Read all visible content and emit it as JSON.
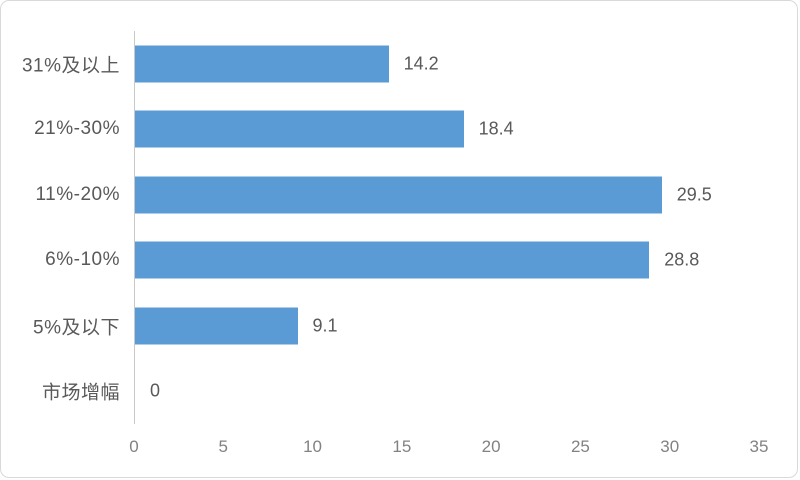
{
  "chart_data": {
    "type": "bar",
    "orientation": "horizontal",
    "title": "",
    "xlabel": "",
    "ylabel": "",
    "categories_top_to_bottom": [
      "31%及以上",
      "21%-30%",
      "11%-20%",
      "6%-10%",
      "5%及以下",
      "市场增幅"
    ],
    "values": [
      14.2,
      18.4,
      29.5,
      28.8,
      9.1,
      0
    ],
    "value_labels": [
      "14.2",
      "18.4",
      "29.5",
      "28.8",
      "9.1",
      "0"
    ],
    "xlim": [
      0,
      35
    ],
    "x_ticks": [
      "0",
      "5",
      "10",
      "15",
      "20",
      "25",
      "30",
      "35"
    ],
    "grid": false,
    "legend": "none",
    "colors": {
      "bar": "#5b9bd5",
      "category_label": "#595959",
      "value_label": "#595959",
      "tick_label": "#828282",
      "axis_line": "#c9c9c9",
      "card_border": "#d9d9d9",
      "background": "#ffffff"
    }
  }
}
